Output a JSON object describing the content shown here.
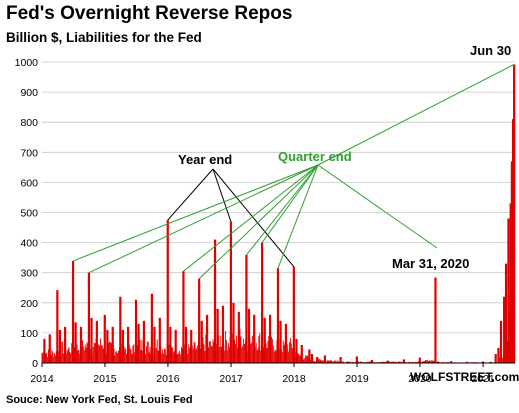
{
  "header": {
    "title": "Fed's Overnight Reverse Repos",
    "subtitle": "Billion $, Liabilities for the Fed"
  },
  "footer": {
    "source": "Souce: New York Fed, St. Louis Fed",
    "brand": "WOLFSTREET.com"
  },
  "colors": {
    "bars": "#e00000",
    "quarter_end": "#2ea02e",
    "grid": "#c8c8c8"
  },
  "chart_data": {
    "type": "bar",
    "title": "Fed's Overnight Reverse Repos",
    "subtitle": "Billion $, Liabilities for the Fed",
    "xlabel": "",
    "ylabel": "",
    "ylim": [
      0,
      1000
    ],
    "yticks": [
      0,
      100,
      200,
      300,
      400,
      500,
      600,
      700,
      800,
      900,
      1000
    ],
    "xlim": [
      "2014-01-01",
      "2021-07-05"
    ],
    "xtick_labels": [
      "2014",
      "2015",
      "2016",
      "2017",
      "2018",
      "2019",
      "2020",
      "2021"
    ],
    "grid": "horizontal",
    "annotations": {
      "year_end": "Year end",
      "quarter_end": "Quarter end",
      "mar_2020": "Mar 31, 2020",
      "jun_30": "Jun 30"
    },
    "series": [
      {
        "values": [
          {
            "x": "2014-01-15",
            "y": 80
          },
          {
            "x": "2014-02-15",
            "y": 95
          },
          {
            "x": "2014-03-31",
            "y": 242
          },
          {
            "x": "2014-04-15",
            "y": 110
          },
          {
            "x": "2014-05-15",
            "y": 120
          },
          {
            "x": "2014-06-30",
            "y": 339
          },
          {
            "x": "2014-07-15",
            "y": 135
          },
          {
            "x": "2014-08-15",
            "y": 120
          },
          {
            "x": "2014-09-30",
            "y": 300
          },
          {
            "x": "2014-10-15",
            "y": 150
          },
          {
            "x": "2014-11-15",
            "y": 140
          },
          {
            "x": "2014-12-31",
            "y": 160
          },
          {
            "x": "2015-01-15",
            "y": 110
          },
          {
            "x": "2015-02-15",
            "y": 120
          },
          {
            "x": "2015-03-31",
            "y": 220
          },
          {
            "x": "2015-04-15",
            "y": 110
          },
          {
            "x": "2015-05-15",
            "y": 120
          },
          {
            "x": "2015-06-30",
            "y": 210
          },
          {
            "x": "2015-07-15",
            "y": 130
          },
          {
            "x": "2015-08-15",
            "y": 140
          },
          {
            "x": "2015-09-30",
            "y": 230
          },
          {
            "x": "2015-10-15",
            "y": 120
          },
          {
            "x": "2015-11-15",
            "y": 150
          },
          {
            "x": "2015-12-31",
            "y": 475
          },
          {
            "x": "2016-01-15",
            "y": 120
          },
          {
            "x": "2016-02-15",
            "y": 110
          },
          {
            "x": "2016-03-31",
            "y": 305
          },
          {
            "x": "2016-04-15",
            "y": 120
          },
          {
            "x": "2016-05-15",
            "y": 110
          },
          {
            "x": "2016-06-30",
            "y": 280
          },
          {
            "x": "2016-07-15",
            "y": 140
          },
          {
            "x": "2016-08-15",
            "y": 160
          },
          {
            "x": "2016-09-30",
            "y": 410
          },
          {
            "x": "2016-10-15",
            "y": 180
          },
          {
            "x": "2016-11-15",
            "y": 190
          },
          {
            "x": "2016-12-31",
            "y": 470
          },
          {
            "x": "2017-01-15",
            "y": 200
          },
          {
            "x": "2017-02-15",
            "y": 170
          },
          {
            "x": "2017-03-31",
            "y": 359
          },
          {
            "x": "2017-04-15",
            "y": 180
          },
          {
            "x": "2017-05-15",
            "y": 160
          },
          {
            "x": "2017-06-30",
            "y": 400
          },
          {
            "x": "2017-07-15",
            "y": 150
          },
          {
            "x": "2017-08-15",
            "y": 160
          },
          {
            "x": "2017-09-30",
            "y": 315
          },
          {
            "x": "2017-10-15",
            "y": 140
          },
          {
            "x": "2017-11-15",
            "y": 130
          },
          {
            "x": "2017-12-31",
            "y": 320
          },
          {
            "x": "2018-01-15",
            "y": 80
          },
          {
            "x": "2018-02-15",
            "y": 60
          },
          {
            "x": "2018-03-31",
            "y": 45
          },
          {
            "x": "2018-04-15",
            "y": 30
          },
          {
            "x": "2018-05-15",
            "y": 20
          },
          {
            "x": "2018-06-29",
            "y": 25
          },
          {
            "x": "2018-07-15",
            "y": 8
          },
          {
            "x": "2018-09-28",
            "y": 20
          },
          {
            "x": "2018-12-31",
            "y": 22
          },
          {
            "x": "2019-03-29",
            "y": 10
          },
          {
            "x": "2019-06-28",
            "y": 8
          },
          {
            "x": "2019-09-30",
            "y": 12
          },
          {
            "x": "2019-12-31",
            "y": 18
          },
          {
            "x": "2020-01-15",
            "y": 3
          },
          {
            "x": "2020-03-31",
            "y": 284
          },
          {
            "x": "2020-04-15",
            "y": 5
          },
          {
            "x": "2020-06-30",
            "y": 6
          },
          {
            "x": "2020-09-30",
            "y": 4
          },
          {
            "x": "2020-12-31",
            "y": 5
          },
          {
            "x": "2021-02-15",
            "y": 4
          },
          {
            "x": "2021-03-15",
            "y": 30
          },
          {
            "x": "2021-03-31",
            "y": 50
          },
          {
            "x": "2021-04-15",
            "y": 140
          },
          {
            "x": "2021-05-03",
            "y": 220
          },
          {
            "x": "2021-05-14",
            "y": 330
          },
          {
            "x": "2021-05-28",
            "y": 480
          },
          {
            "x": "2021-06-10",
            "y": 530
          },
          {
            "x": "2021-06-17",
            "y": 670
          },
          {
            "x": "2021-06-24",
            "y": 810
          },
          {
            "x": "2021-06-30",
            "y": 992
          }
        ]
      }
    ]
  }
}
